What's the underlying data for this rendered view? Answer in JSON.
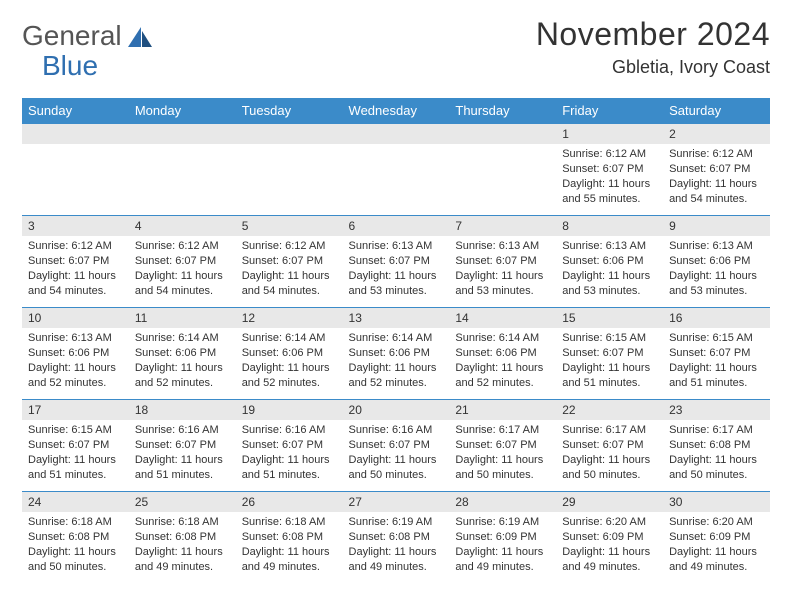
{
  "brand": {
    "line1": "General",
    "line2": "Blue",
    "text_color": "#555555",
    "accent_color": "#2f6fb0"
  },
  "title": "November 2024",
  "location": "Gbletia, Ivory Coast",
  "colors": {
    "header_bg": "#3b8bc9",
    "header_text": "#ffffff",
    "daynum_bg": "#e8e8e8",
    "row_border": "#3b8bc9",
    "body_text": "#333333"
  },
  "typography": {
    "title_fontsize": 32,
    "location_fontsize": 18,
    "dayheader_fontsize": 13,
    "cell_fontsize": 11
  },
  "day_headers": [
    "Sunday",
    "Monday",
    "Tuesday",
    "Wednesday",
    "Thursday",
    "Friday",
    "Saturday"
  ],
  "weeks": [
    [
      {
        "blank": true
      },
      {
        "blank": true
      },
      {
        "blank": true
      },
      {
        "blank": true
      },
      {
        "blank": true
      },
      {
        "num": "1",
        "sunrise": "Sunrise: 6:12 AM",
        "sunset": "Sunset: 6:07 PM",
        "day1": "Daylight: 11 hours",
        "day2": "and 55 minutes."
      },
      {
        "num": "2",
        "sunrise": "Sunrise: 6:12 AM",
        "sunset": "Sunset: 6:07 PM",
        "day1": "Daylight: 11 hours",
        "day2": "and 54 minutes."
      }
    ],
    [
      {
        "num": "3",
        "sunrise": "Sunrise: 6:12 AM",
        "sunset": "Sunset: 6:07 PM",
        "day1": "Daylight: 11 hours",
        "day2": "and 54 minutes."
      },
      {
        "num": "4",
        "sunrise": "Sunrise: 6:12 AM",
        "sunset": "Sunset: 6:07 PM",
        "day1": "Daylight: 11 hours",
        "day2": "and 54 minutes."
      },
      {
        "num": "5",
        "sunrise": "Sunrise: 6:12 AM",
        "sunset": "Sunset: 6:07 PM",
        "day1": "Daylight: 11 hours",
        "day2": "and 54 minutes."
      },
      {
        "num": "6",
        "sunrise": "Sunrise: 6:13 AM",
        "sunset": "Sunset: 6:07 PM",
        "day1": "Daylight: 11 hours",
        "day2": "and 53 minutes."
      },
      {
        "num": "7",
        "sunrise": "Sunrise: 6:13 AM",
        "sunset": "Sunset: 6:07 PM",
        "day1": "Daylight: 11 hours",
        "day2": "and 53 minutes."
      },
      {
        "num": "8",
        "sunrise": "Sunrise: 6:13 AM",
        "sunset": "Sunset: 6:06 PM",
        "day1": "Daylight: 11 hours",
        "day2": "and 53 minutes."
      },
      {
        "num": "9",
        "sunrise": "Sunrise: 6:13 AM",
        "sunset": "Sunset: 6:06 PM",
        "day1": "Daylight: 11 hours",
        "day2": "and 53 minutes."
      }
    ],
    [
      {
        "num": "10",
        "sunrise": "Sunrise: 6:13 AM",
        "sunset": "Sunset: 6:06 PM",
        "day1": "Daylight: 11 hours",
        "day2": "and 52 minutes."
      },
      {
        "num": "11",
        "sunrise": "Sunrise: 6:14 AM",
        "sunset": "Sunset: 6:06 PM",
        "day1": "Daylight: 11 hours",
        "day2": "and 52 minutes."
      },
      {
        "num": "12",
        "sunrise": "Sunrise: 6:14 AM",
        "sunset": "Sunset: 6:06 PM",
        "day1": "Daylight: 11 hours",
        "day2": "and 52 minutes."
      },
      {
        "num": "13",
        "sunrise": "Sunrise: 6:14 AM",
        "sunset": "Sunset: 6:06 PM",
        "day1": "Daylight: 11 hours",
        "day2": "and 52 minutes."
      },
      {
        "num": "14",
        "sunrise": "Sunrise: 6:14 AM",
        "sunset": "Sunset: 6:06 PM",
        "day1": "Daylight: 11 hours",
        "day2": "and 52 minutes."
      },
      {
        "num": "15",
        "sunrise": "Sunrise: 6:15 AM",
        "sunset": "Sunset: 6:07 PM",
        "day1": "Daylight: 11 hours",
        "day2": "and 51 minutes."
      },
      {
        "num": "16",
        "sunrise": "Sunrise: 6:15 AM",
        "sunset": "Sunset: 6:07 PM",
        "day1": "Daylight: 11 hours",
        "day2": "and 51 minutes."
      }
    ],
    [
      {
        "num": "17",
        "sunrise": "Sunrise: 6:15 AM",
        "sunset": "Sunset: 6:07 PM",
        "day1": "Daylight: 11 hours",
        "day2": "and 51 minutes."
      },
      {
        "num": "18",
        "sunrise": "Sunrise: 6:16 AM",
        "sunset": "Sunset: 6:07 PM",
        "day1": "Daylight: 11 hours",
        "day2": "and 51 minutes."
      },
      {
        "num": "19",
        "sunrise": "Sunrise: 6:16 AM",
        "sunset": "Sunset: 6:07 PM",
        "day1": "Daylight: 11 hours",
        "day2": "and 51 minutes."
      },
      {
        "num": "20",
        "sunrise": "Sunrise: 6:16 AM",
        "sunset": "Sunset: 6:07 PM",
        "day1": "Daylight: 11 hours",
        "day2": "and 50 minutes."
      },
      {
        "num": "21",
        "sunrise": "Sunrise: 6:17 AM",
        "sunset": "Sunset: 6:07 PM",
        "day1": "Daylight: 11 hours",
        "day2": "and 50 minutes."
      },
      {
        "num": "22",
        "sunrise": "Sunrise: 6:17 AM",
        "sunset": "Sunset: 6:07 PM",
        "day1": "Daylight: 11 hours",
        "day2": "and 50 minutes."
      },
      {
        "num": "23",
        "sunrise": "Sunrise: 6:17 AM",
        "sunset": "Sunset: 6:08 PM",
        "day1": "Daylight: 11 hours",
        "day2": "and 50 minutes."
      }
    ],
    [
      {
        "num": "24",
        "sunrise": "Sunrise: 6:18 AM",
        "sunset": "Sunset: 6:08 PM",
        "day1": "Daylight: 11 hours",
        "day2": "and 50 minutes."
      },
      {
        "num": "25",
        "sunrise": "Sunrise: 6:18 AM",
        "sunset": "Sunset: 6:08 PM",
        "day1": "Daylight: 11 hours",
        "day2": "and 49 minutes."
      },
      {
        "num": "26",
        "sunrise": "Sunrise: 6:18 AM",
        "sunset": "Sunset: 6:08 PM",
        "day1": "Daylight: 11 hours",
        "day2": "and 49 minutes."
      },
      {
        "num": "27",
        "sunrise": "Sunrise: 6:19 AM",
        "sunset": "Sunset: 6:08 PM",
        "day1": "Daylight: 11 hours",
        "day2": "and 49 minutes."
      },
      {
        "num": "28",
        "sunrise": "Sunrise: 6:19 AM",
        "sunset": "Sunset: 6:09 PM",
        "day1": "Daylight: 11 hours",
        "day2": "and 49 minutes."
      },
      {
        "num": "29",
        "sunrise": "Sunrise: 6:20 AM",
        "sunset": "Sunset: 6:09 PM",
        "day1": "Daylight: 11 hours",
        "day2": "and 49 minutes."
      },
      {
        "num": "30",
        "sunrise": "Sunrise: 6:20 AM",
        "sunset": "Sunset: 6:09 PM",
        "day1": "Daylight: 11 hours",
        "day2": "and 49 minutes."
      }
    ]
  ]
}
